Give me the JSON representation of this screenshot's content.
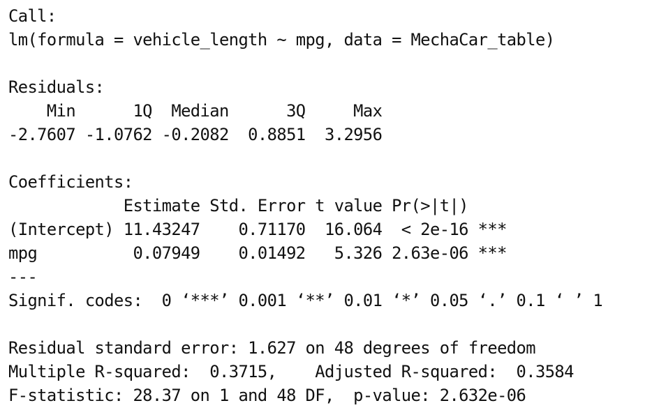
{
  "output": {
    "call_header": "Call:",
    "call_formula": "lm(formula = vehicle_length ~ mpg, data = MechaCar_table)",
    "residuals_header": "Residuals:",
    "residuals_labels": "    Min      1Q  Median      3Q     Max ",
    "residuals_values": "-2.7607 -1.0762 -0.2082  0.8851  3.2956 ",
    "coefficients_header": "Coefficients:",
    "coef_col_headers": "            Estimate Std. Error t value Pr(>|t|)    ",
    "coef_row_intercept": "(Intercept) 11.43247    0.71170  16.064  < 2e-16 ***",
    "coef_row_mpg": "mpg          0.07949    0.01492   5.326 2.63e-06 ***",
    "separator": "---",
    "signif_codes": "Signif. codes:  0 ‘***’ 0.001 ‘**’ 0.01 ‘*’ 0.05 ‘.’ 0.1 ‘ ’ 1",
    "residual_se": "Residual standard error: 1.627 on 48 degrees of freedom",
    "r_squared": "Multiple R-squared:  0.3715,\tAdjusted R-squared:  0.3584 ",
    "f_statistic": "F-statistic: 28.37 on 1 and 48 DF,  p-value: 2.632e-06"
  }
}
